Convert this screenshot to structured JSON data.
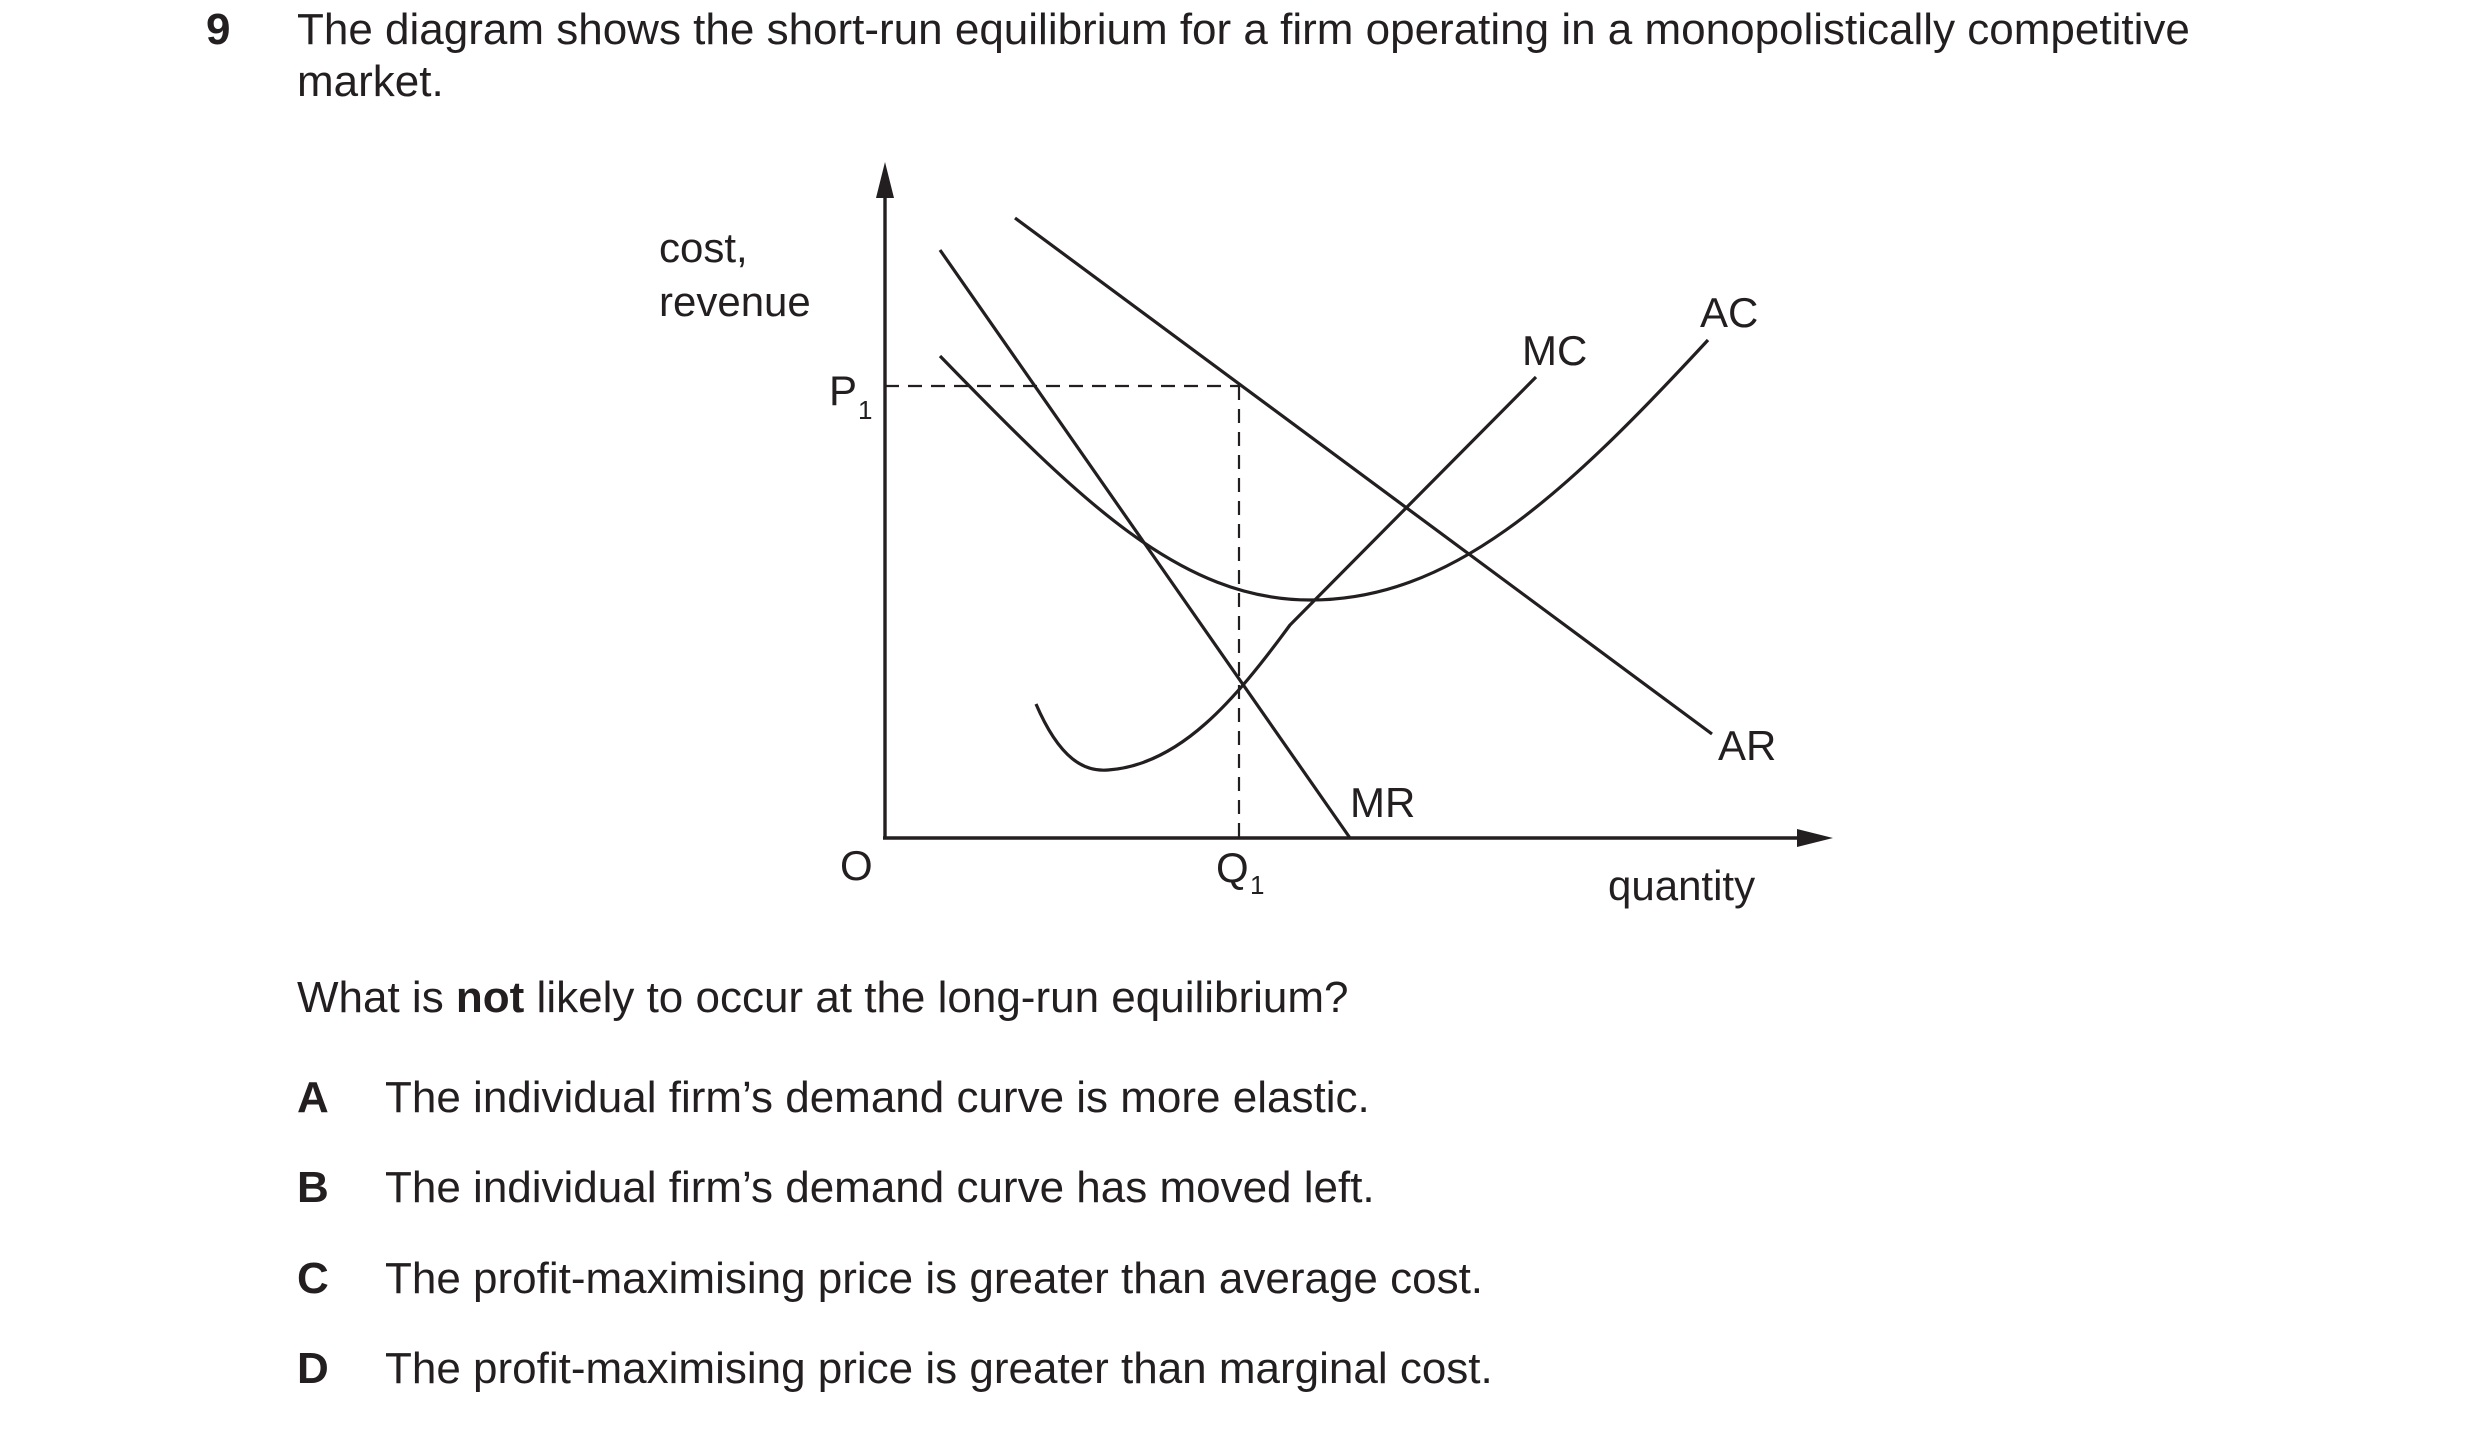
{
  "question": {
    "number": "9",
    "stem_line1": "The diagram shows the short-run equilibrium for a firm operating in a monopolistically competitive",
    "stem_line2": "market.",
    "prompt_before": "What is ",
    "prompt_bold": "not",
    "prompt_after": " likely to occur at the long-run equilibrium?"
  },
  "diagram": {
    "y_axis_label_line1": "cost,",
    "y_axis_label_line2": "revenue",
    "x_axis_label": "quantity",
    "origin_label": "O",
    "price_label": "P",
    "price_subscript": "1",
    "quantity_label": "Q",
    "quantity_subscript": "1",
    "curve_labels": {
      "mc": "MC",
      "ac": "AC",
      "ar": "AR",
      "mr": "MR"
    }
  },
  "options": [
    {
      "letter": "A",
      "text": "The individual firm’s demand curve is more elastic."
    },
    {
      "letter": "B",
      "text": "The individual firm’s demand curve has moved left."
    },
    {
      "letter": "C",
      "text": "The profit-maximising price is greater than average cost."
    },
    {
      "letter": "D",
      "text": "The profit-maximising price is greater than marginal cost."
    }
  ]
}
